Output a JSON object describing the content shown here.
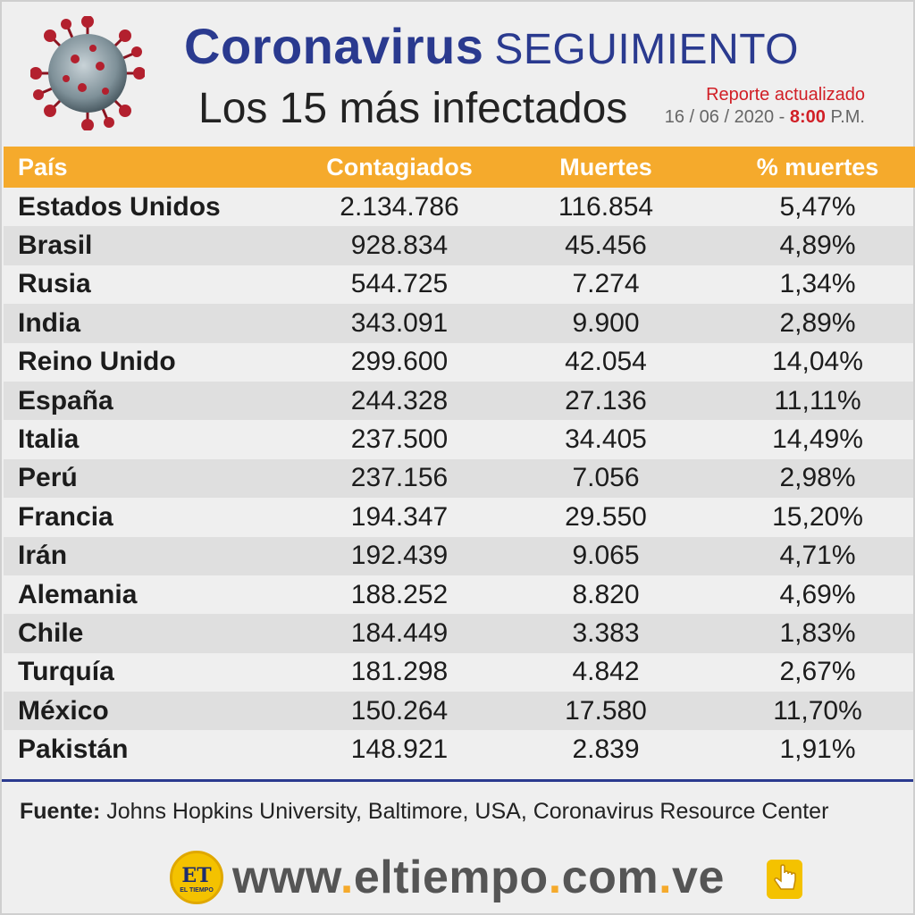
{
  "header": {
    "title_word1": "Coronavirus",
    "title_word2": "SEGUIMIENTO",
    "subtitle": "Los 15 más infectados",
    "report_label": "Reporte actualizado",
    "report_date": "16 / 06 / 2020 -",
    "report_time": "8:00",
    "report_period": "P.M."
  },
  "table": {
    "columns": [
      "País",
      "Contagiados",
      "Muertes",
      "% muertes"
    ],
    "rows": [
      [
        "Estados Unidos",
        "2.134.786",
        "116.854",
        "5,47%"
      ],
      [
        "Brasil",
        "928.834",
        "45.456",
        "4,89%"
      ],
      [
        "Rusia",
        "544.725",
        "7.274",
        "1,34%"
      ],
      [
        "India",
        "343.091",
        "9.900",
        "2,89%"
      ],
      [
        "Reino Unido",
        "299.600",
        "42.054",
        "14,04%"
      ],
      [
        "España",
        "244.328",
        "27.136",
        "11,11%"
      ],
      [
        "Italia",
        "237.500",
        "34.405",
        "14,49%"
      ],
      [
        "Perú",
        "237.156",
        "7.056",
        "2,98%"
      ],
      [
        "Francia",
        "194.347",
        "29.550",
        "15,20%"
      ],
      [
        "Irán",
        "192.439",
        "9.065",
        "4,71%"
      ],
      [
        "Alemania",
        "188.252",
        "8.820",
        "4,69%"
      ],
      [
        "Chile",
        "184.449",
        "3.383",
        "1,83%"
      ],
      [
        "Turquía",
        "181.298",
        "4.842",
        "2,67%"
      ],
      [
        "México",
        "150.264",
        "17.580",
        "11,70%"
      ],
      [
        "Pakistán",
        "148.921",
        "2.839",
        "1,91%"
      ]
    ]
  },
  "source": {
    "label": "Fuente:",
    "text": "Johns Hopkins University, Baltimore, USA, Coronavirus Resource Center"
  },
  "footer": {
    "logo_text": "ET",
    "logo_small": "EL TIEMPO",
    "url_part1": "www",
    "url_dot": ".",
    "url_part2": "eltiempo",
    "url_part3": "com",
    "url_part4": "ve",
    "icon": "pointer-hand-icon"
  },
  "colors": {
    "header_bar": "#f5aa2c",
    "title_blue": "#2a3a8f",
    "report_red": "#d11f26"
  }
}
